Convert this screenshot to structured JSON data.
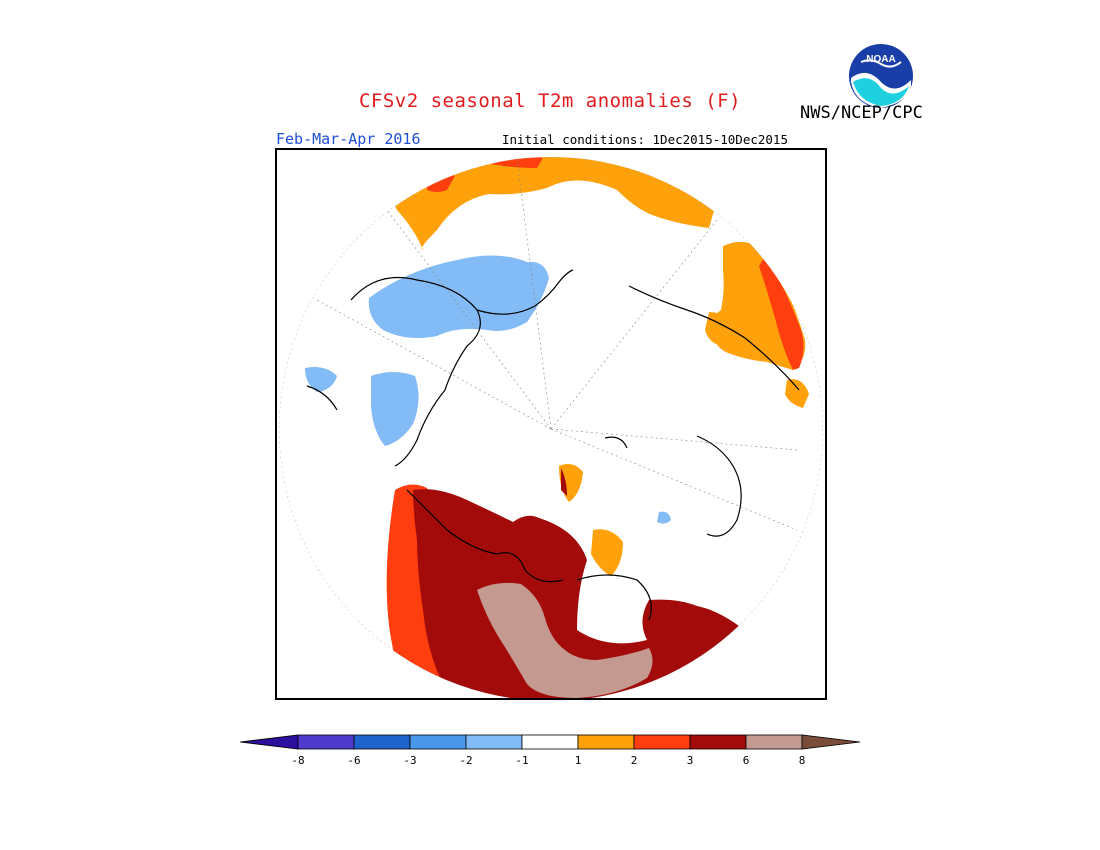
{
  "header": {
    "title": "CFSv2 seasonal T2m anomalies (F)",
    "agency": "NWS/NCEP/CPC",
    "season": "Feb-Mar-Apr 2016",
    "initial_conditions": "Initial conditions: 1Dec2015-10Dec2015"
  },
  "logo": {
    "text": "NOAA",
    "icon": "noaa-logo-icon"
  },
  "map": {
    "projection": "north-polar-stereographic",
    "variable": "2m temperature anomaly",
    "units": "F"
  },
  "colorbar": {
    "ticks": [
      "-8",
      "-6",
      "-3",
      "-2",
      "-1",
      "1",
      "2",
      "3",
      "6",
      "8"
    ],
    "colors": [
      "#2d0f9e",
      "#4f3ccf",
      "#1f64cc",
      "#4a98ea",
      "#82bbf5",
      "#ffffff",
      "#ffa10b",
      "#ff3e10",
      "#a30a0a",
      "#c49a90",
      "#7a4d3a"
    ]
  }
}
